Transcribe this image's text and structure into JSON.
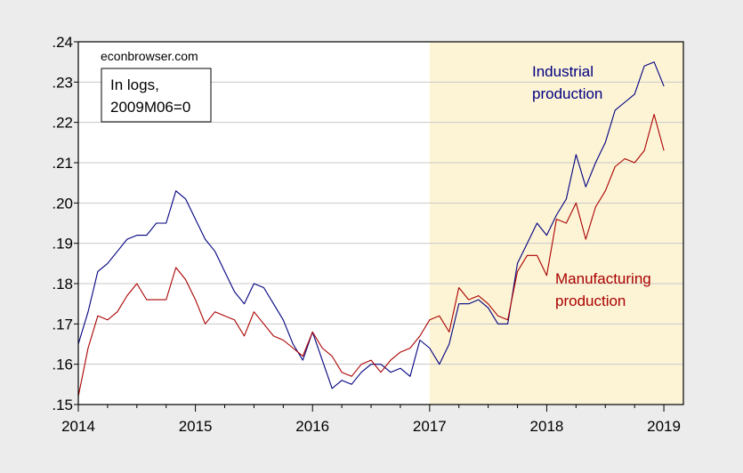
{
  "chart_data": {
    "type": "line",
    "title": "",
    "xlabel": "",
    "ylabel": "",
    "source_text": "econbrowser.com",
    "note_lines": [
      "In logs,",
      "2009M06=0"
    ],
    "xlim": [
      2014.0,
      2019.1667
    ],
    "ylim": [
      0.15,
      0.24
    ],
    "x_ticks": [
      {
        "value": 2014,
        "label": "2014"
      },
      {
        "value": 2015,
        "label": "2015"
      },
      {
        "value": 2016,
        "label": "2016"
      },
      {
        "value": 2017,
        "label": "2017"
      },
      {
        "value": 2018,
        "label": "2018"
      },
      {
        "value": 2019,
        "label": "2019"
      }
    ],
    "y_ticks": [
      {
        "value": 0.15,
        "label": ".15"
      },
      {
        "value": 0.16,
        "label": ".16"
      },
      {
        "value": 0.17,
        "label": ".17"
      },
      {
        "value": 0.18,
        "label": ".18"
      },
      {
        "value": 0.19,
        "label": ".19"
      },
      {
        "value": 0.2,
        "label": ".20"
      },
      {
        "value": 0.21,
        "label": ".21"
      },
      {
        "value": 0.22,
        "label": ".22"
      },
      {
        "value": 0.23,
        "label": ".23"
      },
      {
        "value": 0.24,
        "label": ".24"
      }
    ],
    "grid": "horizontal",
    "shaded_region": {
      "x_start": 2017.0,
      "x_end": 2019.1667,
      "color": "#fdf4d6"
    },
    "series": [
      {
        "name": "Industrial production",
        "label_lines": [
          "Industrial",
          "production"
        ],
        "color": "#000080",
        "x": [
          2014.0,
          2014.0833,
          2014.1667,
          2014.25,
          2014.3333,
          2014.4167,
          2014.5,
          2014.5833,
          2014.6667,
          2014.75,
          2014.8333,
          2014.9167,
          2015.0,
          2015.0833,
          2015.1667,
          2015.25,
          2015.3333,
          2015.4167,
          2015.5,
          2015.5833,
          2015.6667,
          2015.75,
          2015.8333,
          2015.9167,
          2016.0,
          2016.0833,
          2016.1667,
          2016.25,
          2016.3333,
          2016.4167,
          2016.5,
          2016.5833,
          2016.6667,
          2016.75,
          2016.8333,
          2016.9167,
          2017.0,
          2017.0833,
          2017.1667,
          2017.25,
          2017.3333,
          2017.4167,
          2017.5,
          2017.5833,
          2017.6667,
          2017.75,
          2017.8333,
          2017.9167,
          2018.0,
          2018.0833,
          2018.1667,
          2018.25,
          2018.3333,
          2018.4167,
          2018.5,
          2018.5833,
          2018.6667,
          2018.75,
          2018.8333,
          2018.9167,
          2019.0
        ],
        "values": [
          0.165,
          0.173,
          0.183,
          0.185,
          0.188,
          0.191,
          0.192,
          0.192,
          0.195,
          0.195,
          0.203,
          0.201,
          0.196,
          0.191,
          0.188,
          0.183,
          0.178,
          0.175,
          0.18,
          0.179,
          0.175,
          0.171,
          0.165,
          0.161,
          0.168,
          0.161,
          0.154,
          0.156,
          0.155,
          0.158,
          0.16,
          0.16,
          0.158,
          0.159,
          0.157,
          0.166,
          0.164,
          0.16,
          0.165,
          0.175,
          0.175,
          0.176,
          0.174,
          0.17,
          0.17,
          0.185,
          0.19,
          0.195,
          0.192,
          0.197,
          0.201,
          0.212,
          0.204,
          0.21,
          0.215,
          0.223,
          0.225,
          0.227,
          0.234,
          0.235,
          0.229
        ]
      },
      {
        "name": "Manufacturing production",
        "label_lines": [
          "Manufacturing",
          "production"
        ],
        "color": "#aa0000",
        "x": [
          2014.0,
          2014.0833,
          2014.1667,
          2014.25,
          2014.3333,
          2014.4167,
          2014.5,
          2014.5833,
          2014.6667,
          2014.75,
          2014.8333,
          2014.9167,
          2015.0,
          2015.0833,
          2015.1667,
          2015.25,
          2015.3333,
          2015.4167,
          2015.5,
          2015.5833,
          2015.6667,
          2015.75,
          2015.8333,
          2015.9167,
          2016.0,
          2016.0833,
          2016.1667,
          2016.25,
          2016.3333,
          2016.4167,
          2016.5,
          2016.5833,
          2016.6667,
          2016.75,
          2016.8333,
          2016.9167,
          2017.0,
          2017.0833,
          2017.1667,
          2017.25,
          2017.3333,
          2017.4167,
          2017.5,
          2017.5833,
          2017.6667,
          2017.75,
          2017.8333,
          2017.9167,
          2018.0,
          2018.0833,
          2018.1667,
          2018.25,
          2018.3333,
          2018.4167,
          2018.5,
          2018.5833,
          2018.6667,
          2018.75,
          2018.8333,
          2018.9167,
          2019.0
        ],
        "values": [
          0.152,
          0.164,
          0.172,
          0.171,
          0.173,
          0.177,
          0.18,
          0.176,
          0.176,
          0.176,
          0.184,
          0.181,
          0.176,
          0.17,
          0.173,
          0.172,
          0.171,
          0.167,
          0.173,
          0.17,
          0.167,
          0.166,
          0.164,
          0.162,
          0.168,
          0.164,
          0.162,
          0.158,
          0.157,
          0.16,
          0.161,
          0.158,
          0.161,
          0.163,
          0.164,
          0.167,
          0.171,
          0.172,
          0.168,
          0.179,
          0.176,
          0.177,
          0.175,
          0.172,
          0.171,
          0.183,
          0.187,
          0.187,
          0.182,
          0.196,
          0.195,
          0.2,
          0.191,
          0.199,
          0.203,
          0.209,
          0.211,
          0.21,
          0.213,
          0.222,
          0.213
        ]
      }
    ]
  }
}
